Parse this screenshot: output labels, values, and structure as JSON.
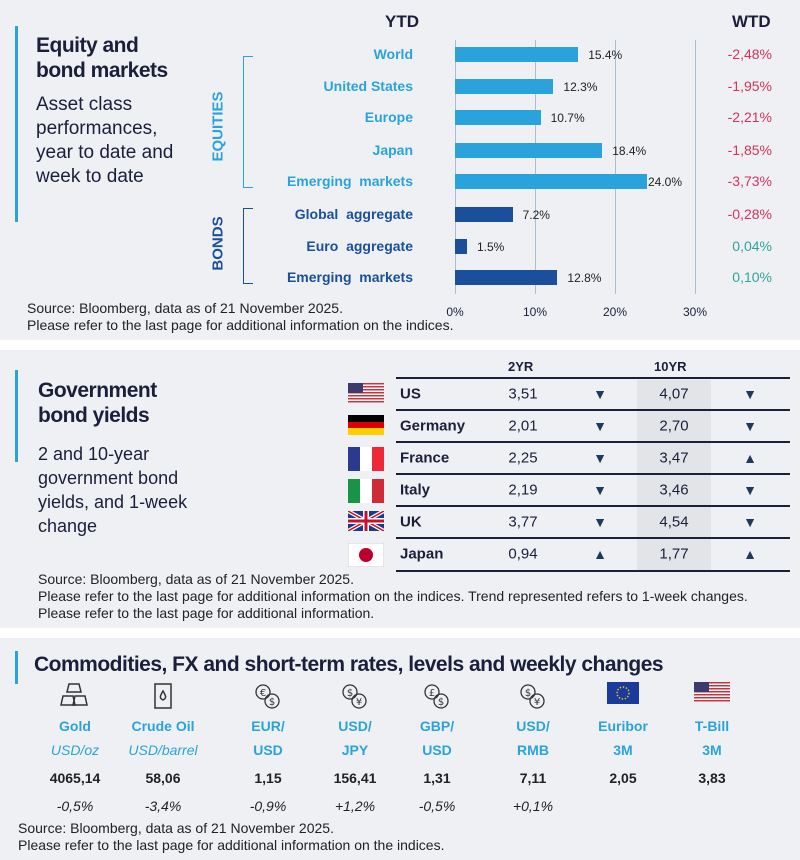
{
  "equity": {
    "title": "Equity and bond markets",
    "title_lines": [
      "Equity and",
      "bond markets"
    ],
    "subtitle": "Asset class performances, year to date and week to date",
    "ytd_header": "YTD",
    "wtd_header": "WTD",
    "source": "Source: Bloomberg, data as of 21 November 2025.",
    "note": "Please refer to the last page for additional information on the indices."
  },
  "chart_data": {
    "type": "bar",
    "orientation": "horizontal",
    "groups": [
      {
        "name": "EQUITIES",
        "color": "#2aa3dc"
      },
      {
        "name": "BONDS",
        "color": "#1a4f9c"
      }
    ],
    "categories": [
      "World",
      "United States",
      "Europe",
      "Japan",
      "Emerging  markets",
      "Global  aggregate",
      "Euro  aggregate",
      "Emerging  markets"
    ],
    "group_of": [
      "EQUITIES",
      "EQUITIES",
      "EQUITIES",
      "EQUITIES",
      "EQUITIES",
      "BONDS",
      "BONDS",
      "BONDS"
    ],
    "values": [
      15.4,
      12.3,
      10.7,
      18.4,
      24.0,
      7.2,
      1.5,
      12.8
    ],
    "value_labels": [
      "15.4%",
      "12.3%",
      "10.7%",
      "18.4%",
      "24.0%",
      "7.2%",
      "1.5%",
      "12.8%"
    ],
    "wtd": [
      "-2,48%",
      "-1,95%",
      "-2,21%",
      "-1,85%",
      "-3,73%",
      "-0,28%",
      "0,04%",
      "0,10%"
    ],
    "wtd_colors": {
      "negative": "#d6335a",
      "positive": "#2ea59a"
    },
    "xlim": [
      0,
      30
    ],
    "xticks": [
      "0%",
      "10%",
      "20%",
      "30%"
    ],
    "grid": true
  },
  "bonds": {
    "title_lines": [
      "Government",
      "bond yields"
    ],
    "subtitle": "2 and 10-year government bond yields, and 1-week change",
    "col_2yr": "2YR",
    "col_10yr": "10YR",
    "rows": [
      {
        "country": "US",
        "flag": "us-flag",
        "y2": "3,51",
        "t2": "down",
        "y10": "4,07",
        "t10": "down"
      },
      {
        "country": "Germany",
        "flag": "germany-flag",
        "y2": "2,01",
        "t2": "down",
        "y10": "2,70",
        "t10": "down"
      },
      {
        "country": "France",
        "flag": "france-flag",
        "y2": "2,25",
        "t2": "down",
        "y10": "3,47",
        "t10": "up"
      },
      {
        "country": "Italy",
        "flag": "italy-flag",
        "y2": "2,19",
        "t2": "down",
        "y10": "3,46",
        "t10": "down"
      },
      {
        "country": "UK",
        "flag": "uk-flag",
        "y2": "3,77",
        "t2": "down",
        "y10": "4,54",
        "t10": "down"
      },
      {
        "country": "Japan",
        "flag": "japan-flag",
        "y2": "0,94",
        "t2": "up",
        "y10": "1,77",
        "t10": "up"
      }
    ],
    "source": "Source: Bloomberg, data as of 21 November 2025.",
    "note": "Please refer to the last page for additional information on the indices. Trend represented refers to 1-week changes. Please refer to the last page for additional information."
  },
  "commodities": {
    "title": "Commodities, FX and short-term rates, levels and weekly changes",
    "items": [
      {
        "icon": "gold-bars-icon",
        "name": "Gold",
        "sub": "USD/oz",
        "sub_italic": true,
        "value": "4065,14",
        "change": "-0,5%"
      },
      {
        "icon": "oil-barrel-icon",
        "name": "Crude Oil",
        "sub": "USD/barrel",
        "sub_italic": true,
        "value": "58,06",
        "change": "-3,4%"
      },
      {
        "icon": "currency-exchange-icon",
        "glyph": "€$",
        "name": "EUR/",
        "sub": "USD",
        "value": "1,15",
        "change": "-0,9%"
      },
      {
        "icon": "currency-exchange-icon",
        "glyph": "$¥",
        "name": "USD/",
        "sub": "JPY",
        "value": "156,41",
        "change": "+1,2%"
      },
      {
        "icon": "currency-exchange-icon",
        "glyph": "£$",
        "name": "GBP/",
        "sub": "USD",
        "value": "1,31",
        "change": "-0,5%"
      },
      {
        "icon": "currency-exchange-icon",
        "glyph": "$¥",
        "name": "USD/",
        "sub": "RMB",
        "value": "7,11",
        "change": "+0,1%"
      },
      {
        "icon": "eu-flag-icon",
        "name": "Euribor",
        "sub": "3M",
        "value": "2,05",
        "change": ""
      },
      {
        "icon": "us-flag-icon",
        "name": "T-Bill",
        "sub": "3M",
        "value": "3,83",
        "change": ""
      }
    ],
    "source": "Source: Bloomberg, data as of 21 November 2025.",
    "note": "Please refer to the last page for additional information on the indices."
  },
  "colors": {
    "accent": "#2aa3dc",
    "navy": "#1b1f3b",
    "bond_blue": "#1a4f9c"
  }
}
